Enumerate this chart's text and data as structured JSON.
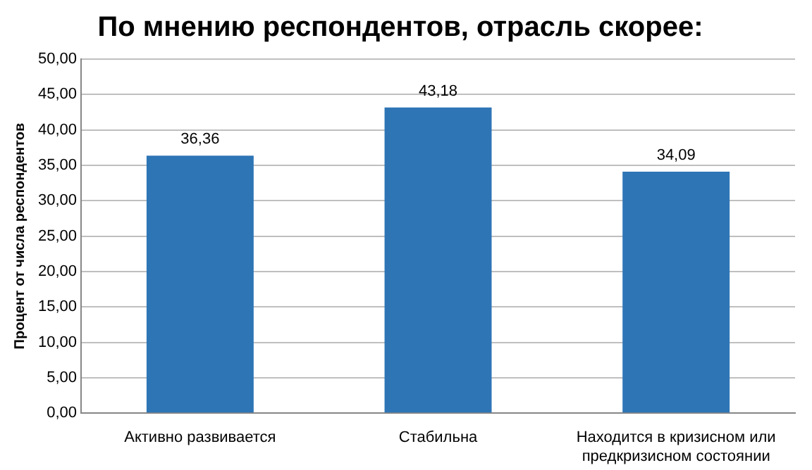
{
  "chart_data": {
    "type": "bar",
    "title": "По мнению респондентов, отрасль скорее:",
    "ylabel": "Процент от числа респондентов",
    "categories": [
      "Активно развивается",
      "Стабильна",
      "Находится в кризисном или предкризисном состоянии"
    ],
    "values": [
      36.36,
      43.18,
      34.09
    ],
    "color": "#2e75b6",
    "value_labels": [
      "36,36",
      "43,18",
      "34,09"
    ],
    "ylim": [
      0,
      50
    ],
    "yticks": [
      {
        "value": 0,
        "label": "0,00"
      },
      {
        "value": 5,
        "label": "5,00"
      },
      {
        "value": 10,
        "label": "10,00"
      },
      {
        "value": 15,
        "label": "15,00"
      },
      {
        "value": 20,
        "label": "20,00"
      },
      {
        "value": 25,
        "label": "25,00"
      },
      {
        "value": 30,
        "label": "30,00"
      },
      {
        "value": 35,
        "label": "35,00"
      },
      {
        "value": 40,
        "label": "40,00"
      },
      {
        "value": 45,
        "label": "45,00"
      },
      {
        "value": 50,
        "label": "50,00"
      }
    ],
    "grid": "y",
    "legend": false
  }
}
